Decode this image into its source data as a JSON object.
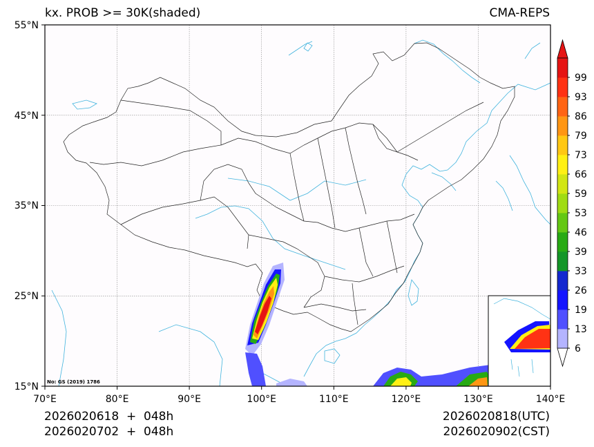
{
  "header": {
    "title": "kx. PROB >= 30K(shaded)",
    "model": "CMA-REPS"
  },
  "footer": {
    "init_utc": "2026020618  +  048h",
    "init_cst": "2026020702  +  048h",
    "valid_utc": "2026020818(UTC)",
    "valid_cst": "2026020902(CST)"
  },
  "map": {
    "projection": "lat-lon",
    "lon_range": [
      70,
      140
    ],
    "lat_range": [
      15,
      55
    ],
    "lon_ticks": [
      "70°E",
      "80°E",
      "90°E",
      "100°E",
      "110°E",
      "120°E",
      "130°E",
      "140°E"
    ],
    "lat_ticks": [
      "15°N",
      "25°N",
      "35°N",
      "45°N",
      "55°N"
    ],
    "approval_number": "No: GS (2019) 1786",
    "inset": "South China Sea islands"
  },
  "colorbar": {
    "labels": [
      "6",
      "13",
      "19",
      "26",
      "33",
      "39",
      "46",
      "53",
      "59",
      "66",
      "73",
      "79",
      "86",
      "93",
      "99"
    ],
    "colors": [
      "#b4b4ff",
      "#5050ff",
      "#1414ff",
      "#1428d0",
      "#149628",
      "#28aa14",
      "#64c814",
      "#a0dc14",
      "#d2e614",
      "#fff014",
      "#ffc814",
      "#ff9614",
      "#ff6414",
      "#ff3214",
      "#e61414"
    ],
    "extend_min_color": "#ffffff",
    "extend_max_color": "#e61414"
  },
  "colors": {
    "background": "#fefcfe",
    "border": "#000000",
    "coast": "#3fb3dd",
    "grid": "#888888"
  }
}
